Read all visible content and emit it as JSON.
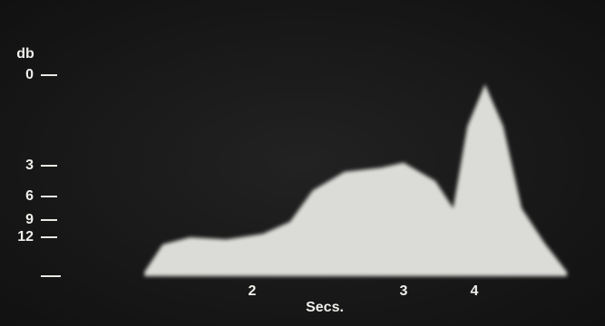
{
  "chart_data": {
    "type": "area",
    "x_label": "Secs.",
    "y_label": "db",
    "x": [
      1.29,
      1.41,
      1.59,
      1.83,
      2.07,
      2.25,
      2.4,
      2.61,
      2.85,
      3.0,
      3.45,
      3.7,
      3.9,
      4.15,
      4.41,
      4.67,
      4.99,
      5.31
    ],
    "values": [
      28,
      15.3,
      12,
      13,
      11.4,
      9.3,
      5.4,
      3.6,
      3.2,
      2.9,
      4.5,
      7.5,
      1.7,
      0.3,
      1.7,
      7.5,
      14.5,
      28
    ],
    "color": "#e6e6e2",
    "xlim": [
      1.3,
      5.4
    ],
    "xticks": [
      2,
      3,
      4
    ],
    "ylim": [
      0,
      30
    ],
    "yticks": [
      0,
      3,
      6,
      9,
      12
    ]
  }
}
